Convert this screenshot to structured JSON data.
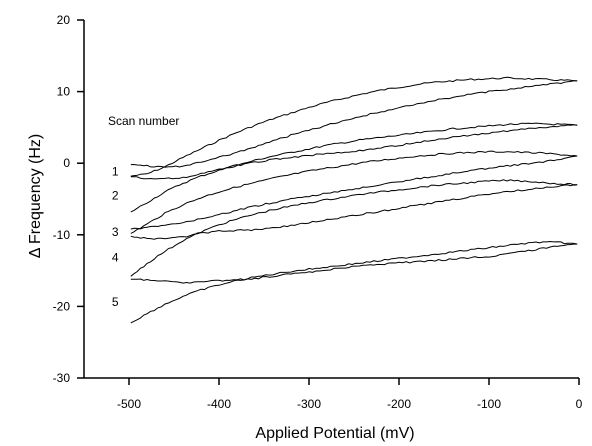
{
  "chart_data": {
    "type": "line",
    "title": "",
    "xlabel": "Applied Potential (mV)",
    "ylabel": "Δ Frequency (Hz)",
    "xlim": [
      -550,
      0
    ],
    "ylim": [
      -30,
      20
    ],
    "xticks": [
      -500,
      -400,
      -300,
      -200,
      -100,
      0
    ],
    "yticks": [
      -30,
      -20,
      -10,
      0,
      10,
      20
    ],
    "xtick_labels": [
      "-500",
      "-400",
      "-300",
      "-200",
      "-100",
      "0"
    ],
    "ytick_labels": [
      "-30",
      "-20",
      "-10",
      "0",
      "10",
      "20"
    ],
    "grid": false,
    "legend": "none",
    "annotation_title": "Scan number",
    "series": [
      {
        "label": "1",
        "forward": [
          [
            -498,
            -1.8
          ],
          [
            -480,
            -1.5
          ],
          [
            -460,
            -0.5
          ],
          [
            -440,
            0.8
          ],
          [
            -420,
            2.0
          ],
          [
            -400,
            3.2
          ],
          [
            -380,
            4.3
          ],
          [
            -360,
            5.3
          ],
          [
            -340,
            6.2
          ],
          [
            -320,
            7.0
          ],
          [
            -300,
            7.8
          ],
          [
            -280,
            8.5
          ],
          [
            -260,
            9.1
          ],
          [
            -240,
            9.7
          ],
          [
            -220,
            10.2
          ],
          [
            -200,
            10.6
          ],
          [
            -180,
            11.0
          ],
          [
            -160,
            11.3
          ],
          [
            -140,
            11.5
          ],
          [
            -120,
            11.7
          ],
          [
            -100,
            11.8
          ],
          [
            -80,
            11.9
          ],
          [
            -60,
            11.8
          ],
          [
            -40,
            11.7
          ],
          [
            -20,
            11.6
          ],
          [
            -2,
            11.5
          ]
        ],
        "reverse": [
          [
            -2,
            11.5
          ],
          [
            -20,
            11.2
          ],
          [
            -40,
            10.9
          ],
          [
            -60,
            10.6
          ],
          [
            -80,
            10.3
          ],
          [
            -100,
            10.0
          ],
          [
            -120,
            9.6
          ],
          [
            -140,
            9.2
          ],
          [
            -160,
            8.8
          ],
          [
            -180,
            8.3
          ],
          [
            -200,
            7.8
          ],
          [
            -220,
            7.2
          ],
          [
            -240,
            6.6
          ],
          [
            -260,
            6.0
          ],
          [
            -280,
            5.3
          ],
          [
            -300,
            4.6
          ],
          [
            -320,
            3.9
          ],
          [
            -340,
            3.1
          ],
          [
            -360,
            2.3
          ],
          [
            -380,
            1.5
          ],
          [
            -400,
            0.8
          ],
          [
            -420,
            0.1
          ],
          [
            -440,
            -0.4
          ],
          [
            -460,
            -0.6
          ],
          [
            -480,
            -0.4
          ],
          [
            -498,
            -0.2
          ]
        ]
      },
      {
        "label": "2",
        "forward": [
          [
            -498,
            -6.8
          ],
          [
            -480,
            -5.5
          ],
          [
            -460,
            -4.0
          ],
          [
            -440,
            -2.8
          ],
          [
            -420,
            -1.8
          ],
          [
            -400,
            -1.0
          ],
          [
            -380,
            -0.3
          ],
          [
            -360,
            0.4
          ],
          [
            -340,
            1.0
          ],
          [
            -320,
            1.5
          ],
          [
            -300,
            2.0
          ],
          [
            -280,
            2.5
          ],
          [
            -260,
            2.9
          ],
          [
            -240,
            3.3
          ],
          [
            -220,
            3.6
          ],
          [
            -200,
            3.9
          ],
          [
            -180,
            4.2
          ],
          [
            -160,
            4.5
          ],
          [
            -140,
            4.8
          ],
          [
            -120,
            5.0
          ],
          [
            -100,
            5.2
          ],
          [
            -80,
            5.4
          ],
          [
            -60,
            5.5
          ],
          [
            -40,
            5.5
          ],
          [
            -20,
            5.4
          ],
          [
            -2,
            5.3
          ]
        ],
        "reverse": [
          [
            -2,
            5.3
          ],
          [
            -20,
            5.2
          ],
          [
            -40,
            5.0
          ],
          [
            -60,
            4.8
          ],
          [
            -80,
            4.5
          ],
          [
            -100,
            4.2
          ],
          [
            -120,
            3.9
          ],
          [
            -140,
            3.6
          ],
          [
            -160,
            3.2
          ],
          [
            -180,
            2.9
          ],
          [
            -200,
            2.5
          ],
          [
            -220,
            2.2
          ],
          [
            -240,
            1.8
          ],
          [
            -260,
            1.5
          ],
          [
            -280,
            1.3
          ],
          [
            -300,
            1.1
          ],
          [
            -320,
            0.8
          ],
          [
            -340,
            0.5
          ],
          [
            -360,
            0.1
          ],
          [
            -380,
            -0.3
          ],
          [
            -400,
            -0.9
          ],
          [
            -420,
            -1.5
          ],
          [
            -440,
            -2.0
          ],
          [
            -460,
            -2.2
          ],
          [
            -480,
            -2.1
          ],
          [
            -498,
            -1.9
          ]
        ]
      },
      {
        "label": "3",
        "forward": [
          [
            -498,
            -9.8
          ],
          [
            -480,
            -8.5
          ],
          [
            -460,
            -7.0
          ],
          [
            -440,
            -5.8
          ],
          [
            -420,
            -4.8
          ],
          [
            -400,
            -4.0
          ],
          [
            -380,
            -3.3
          ],
          [
            -360,
            -2.7
          ],
          [
            -340,
            -2.1
          ],
          [
            -320,
            -1.6
          ],
          [
            -300,
            -1.1
          ],
          [
            -280,
            -0.7
          ],
          [
            -260,
            -0.3
          ],
          [
            -240,
            0.1
          ],
          [
            -220,
            0.4
          ],
          [
            -200,
            0.7
          ],
          [
            -180,
            1.0
          ],
          [
            -160,
            1.2
          ],
          [
            -140,
            1.4
          ],
          [
            -120,
            1.5
          ],
          [
            -100,
            1.6
          ],
          [
            -80,
            1.6
          ],
          [
            -60,
            1.5
          ],
          [
            -40,
            1.4
          ],
          [
            -20,
            1.2
          ],
          [
            -2,
            1.0
          ]
        ],
        "reverse": [
          [
            -2,
            1.0
          ],
          [
            -20,
            0.5
          ],
          [
            -40,
            0.2
          ],
          [
            -60,
            -0.1
          ],
          [
            -80,
            -0.4
          ],
          [
            -100,
            -0.7
          ],
          [
            -120,
            -1.0
          ],
          [
            -140,
            -1.4
          ],
          [
            -160,
            -1.8
          ],
          [
            -180,
            -2.2
          ],
          [
            -200,
            -2.6
          ],
          [
            -220,
            -3.0
          ],
          [
            -240,
            -3.4
          ],
          [
            -260,
            -3.8
          ],
          [
            -280,
            -4.2
          ],
          [
            -300,
            -4.6
          ],
          [
            -320,
            -5.0
          ],
          [
            -340,
            -5.5
          ],
          [
            -360,
            -6.0
          ],
          [
            -380,
            -6.6
          ],
          [
            -400,
            -7.2
          ],
          [
            -420,
            -7.8
          ],
          [
            -440,
            -8.3
          ],
          [
            -460,
            -8.7
          ],
          [
            -480,
            -9.0
          ],
          [
            -498,
            -9.2
          ]
        ]
      },
      {
        "label": "4",
        "forward": [
          [
            -498,
            -15.8
          ],
          [
            -480,
            -14.0
          ],
          [
            -460,
            -12.3
          ],
          [
            -440,
            -10.8
          ],
          [
            -420,
            -9.6
          ],
          [
            -400,
            -8.6
          ],
          [
            -380,
            -7.8
          ],
          [
            -360,
            -7.1
          ],
          [
            -340,
            -6.5
          ],
          [
            -320,
            -6.0
          ],
          [
            -300,
            -5.5
          ],
          [
            -280,
            -5.1
          ],
          [
            -260,
            -4.7
          ],
          [
            -240,
            -4.3
          ],
          [
            -220,
            -4.0
          ],
          [
            -200,
            -3.7
          ],
          [
            -180,
            -3.4
          ],
          [
            -160,
            -3.1
          ],
          [
            -140,
            -2.9
          ],
          [
            -120,
            -2.7
          ],
          [
            -100,
            -2.5
          ],
          [
            -80,
            -2.4
          ],
          [
            -60,
            -2.5
          ],
          [
            -40,
            -2.7
          ],
          [
            -20,
            -2.9
          ],
          [
            -2,
            -3.0
          ]
        ],
        "reverse": [
          [
            -2,
            -3.0
          ],
          [
            -20,
            -3.2
          ],
          [
            -40,
            -3.4
          ],
          [
            -60,
            -3.7
          ],
          [
            -80,
            -4.0
          ],
          [
            -100,
            -4.3
          ],
          [
            -120,
            -4.7
          ],
          [
            -140,
            -5.1
          ],
          [
            -160,
            -5.5
          ],
          [
            -180,
            -5.9
          ],
          [
            -200,
            -6.3
          ],
          [
            -220,
            -6.7
          ],
          [
            -240,
            -7.1
          ],
          [
            -260,
            -7.5
          ],
          [
            -280,
            -7.9
          ],
          [
            -300,
            -8.3
          ],
          [
            -320,
            -8.7
          ],
          [
            -340,
            -9.0
          ],
          [
            -360,
            -9.3
          ],
          [
            -380,
            -9.4
          ],
          [
            -400,
            -9.5
          ],
          [
            -420,
            -9.8
          ],
          [
            -440,
            -10.3
          ],
          [
            -460,
            -10.6
          ],
          [
            -480,
            -10.5
          ],
          [
            -498,
            -10.2
          ]
        ]
      },
      {
        "label": "5",
        "forward": [
          [
            -498,
            -22.3
          ],
          [
            -480,
            -21.0
          ],
          [
            -460,
            -19.7
          ],
          [
            -440,
            -18.6
          ],
          [
            -420,
            -17.7
          ],
          [
            -400,
            -17.0
          ],
          [
            -380,
            -16.4
          ],
          [
            -360,
            -15.9
          ],
          [
            -340,
            -15.5
          ],
          [
            -320,
            -15.1
          ],
          [
            -300,
            -14.8
          ],
          [
            -280,
            -14.5
          ],
          [
            -260,
            -14.2
          ],
          [
            -240,
            -13.9
          ],
          [
            -220,
            -13.6
          ],
          [
            -200,
            -13.3
          ],
          [
            -180,
            -13.0
          ],
          [
            -160,
            -12.7
          ],
          [
            -140,
            -12.4
          ],
          [
            -120,
            -12.1
          ],
          [
            -100,
            -11.8
          ],
          [
            -80,
            -11.5
          ],
          [
            -60,
            -11.2
          ],
          [
            -40,
            -11.0
          ],
          [
            -20,
            -11.1
          ],
          [
            -2,
            -11.3
          ]
        ],
        "reverse": [
          [
            -2,
            -11.3
          ],
          [
            -20,
            -11.5
          ],
          [
            -40,
            -11.9
          ],
          [
            -60,
            -12.3
          ],
          [
            -80,
            -12.7
          ],
          [
            -100,
            -13.0
          ],
          [
            -120,
            -13.2
          ],
          [
            -140,
            -13.4
          ],
          [
            -160,
            -13.6
          ],
          [
            -180,
            -13.8
          ],
          [
            -200,
            -13.9
          ],
          [
            -220,
            -14.1
          ],
          [
            -240,
            -14.3
          ],
          [
            -260,
            -14.6
          ],
          [
            -280,
            -14.9
          ],
          [
            -300,
            -15.2
          ],
          [
            -320,
            -15.5
          ],
          [
            -340,
            -15.8
          ],
          [
            -360,
            -16.1
          ],
          [
            -380,
            -16.3
          ],
          [
            -400,
            -16.4
          ],
          [
            -420,
            -16.6
          ],
          [
            -440,
            -16.7
          ],
          [
            -460,
            -16.5
          ],
          [
            -480,
            -16.3
          ],
          [
            -498,
            -16.2
          ]
        ]
      }
    ]
  },
  "colors": {
    "line": "#000000",
    "background": "#ffffff"
  }
}
